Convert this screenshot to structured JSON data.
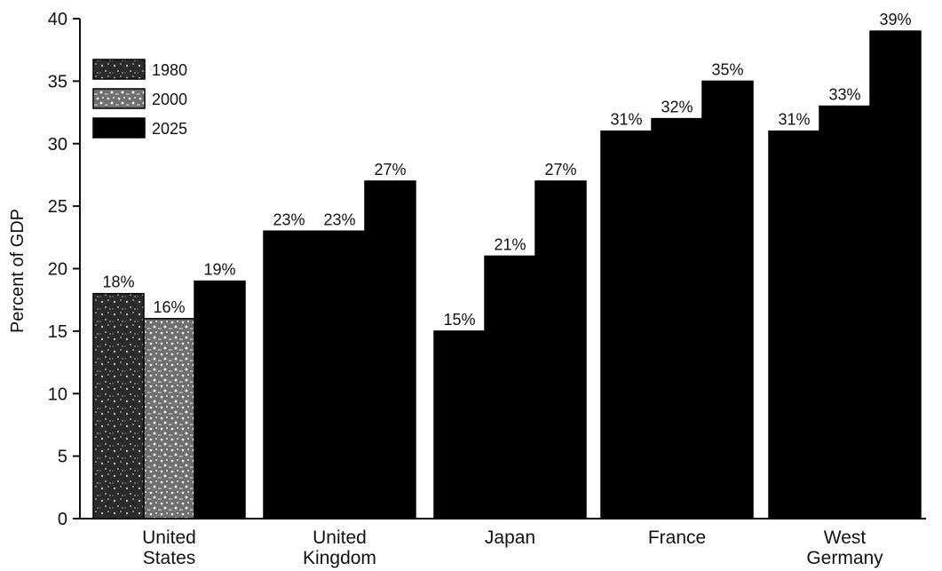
{
  "chart_data": {
    "type": "bar",
    "title": "",
    "xlabel": "",
    "ylabel": "Percent of GDP",
    "ylim": [
      0,
      40
    ],
    "yticks": [
      "0",
      "5",
      "10",
      "15",
      "20",
      "25",
      "30",
      "35",
      "40"
    ],
    "grid": false,
    "legend_position": "top-left",
    "categories": [
      [
        "United",
        "States"
      ],
      [
        "United",
        "Kingdom"
      ],
      [
        "Japan"
      ],
      [
        "France"
      ],
      [
        "West",
        "Germany"
      ]
    ],
    "series": [
      {
        "name": "1980",
        "values": [
          18,
          23,
          15,
          31,
          31
        ],
        "labels": [
          "18%",
          "23%",
          "15%",
          "31%",
          "31%"
        ],
        "color": "#3a3a3a",
        "pattern": "dark-speckle"
      },
      {
        "name": "2000",
        "values": [
          16,
          23,
          21,
          32,
          33
        ],
        "labels": [
          "16%",
          "23%",
          "21%",
          "32%",
          "33%"
        ],
        "color": "#8a8a8a",
        "pattern": "light-speckle"
      },
      {
        "name": "2025",
        "values": [
          19,
          27,
          27,
          35,
          39
        ],
        "labels": [
          "19%",
          "27%",
          "27%",
          "35%",
          "39%"
        ],
        "color": "#000000",
        "pattern": "solid"
      }
    ],
    "bar_fill_overrides": [
      [
        null,
        "#000000",
        "#000000",
        "#000000",
        "#000000"
      ],
      [
        null,
        "#000000",
        "#000000",
        "#000000",
        "#000000"
      ],
      [
        null,
        null,
        null,
        null,
        null
      ]
    ]
  }
}
